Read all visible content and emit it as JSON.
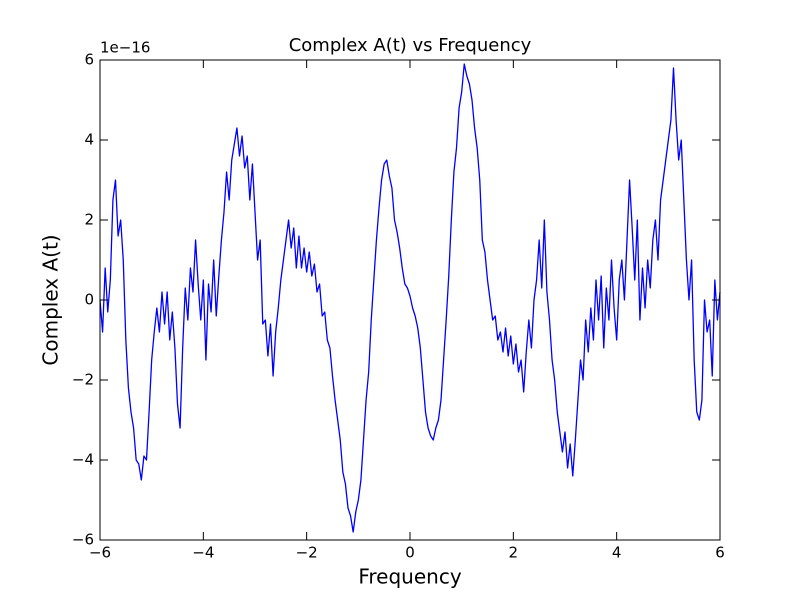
{
  "chart_data": {
    "type": "line",
    "title": "Complex A(t) vs Frequency",
    "x_label": "Frequency",
    "y_label": "Complex A(t)",
    "y_offset_label": "1e−16",
    "color": "#0000ff",
    "grid": false,
    "xlim": [
      -6,
      6
    ],
    "ylim": [
      -6,
      6
    ],
    "xticks": [
      {
        "value": -6,
        "label": "−6"
      },
      {
        "value": -4,
        "label": "−4"
      },
      {
        "value": -2,
        "label": "−2"
      },
      0,
      2,
      4,
      6
    ],
    "yticks": [
      {
        "value": -6,
        "label": "−6"
      },
      {
        "value": -4,
        "label": "−4"
      },
      {
        "value": -2,
        "label": "−2"
      },
      0,
      2,
      4,
      6
    ],
    "x": [
      -6.0,
      -5.95,
      -5.9,
      -5.85,
      -5.8,
      -5.75,
      -5.7,
      -5.65,
      -5.6,
      -5.55,
      -5.5,
      -5.45,
      -5.4,
      -5.35,
      -5.3,
      -5.25,
      -5.2,
      -5.15,
      -5.1,
      -5.05,
      -5.0,
      -4.95,
      -4.9,
      -4.85,
      -4.8,
      -4.75,
      -4.7,
      -4.65,
      -4.6,
      -4.55,
      -4.5,
      -4.45,
      -4.4,
      -4.35,
      -4.3,
      -4.25,
      -4.2,
      -4.15,
      -4.1,
      -4.05,
      -4.0,
      -3.95,
      -3.9,
      -3.85,
      -3.8,
      -3.75,
      -3.7,
      -3.65,
      -3.6,
      -3.55,
      -3.5,
      -3.45,
      -3.4,
      -3.35,
      -3.3,
      -3.25,
      -3.2,
      -3.15,
      -3.1,
      -3.05,
      -3.0,
      -2.95,
      -2.9,
      -2.85,
      -2.8,
      -2.75,
      -2.7,
      -2.65,
      -2.6,
      -2.55,
      -2.5,
      -2.45,
      -2.4,
      -2.35,
      -2.3,
      -2.25,
      -2.2,
      -2.15,
      -2.1,
      -2.05,
      -2.0,
      -1.95,
      -1.9,
      -1.85,
      -1.8,
      -1.75,
      -1.7,
      -1.65,
      -1.6,
      -1.55,
      -1.5,
      -1.45,
      -1.4,
      -1.35,
      -1.3,
      -1.25,
      -1.2,
      -1.15,
      -1.1,
      -1.05,
      -1.0,
      -0.95,
      -0.9,
      -0.85,
      -0.8,
      -0.75,
      -0.7,
      -0.65,
      -0.6,
      -0.55,
      -0.5,
      -0.45,
      -0.4,
      -0.35,
      -0.3,
      -0.25,
      -0.2,
      -0.15,
      -0.1,
      -0.05,
      0.0,
      0.05,
      0.1,
      0.15,
      0.2,
      0.25,
      0.3,
      0.35,
      0.4,
      0.45,
      0.5,
      0.55,
      0.6,
      0.65,
      0.7,
      0.75,
      0.8,
      0.85,
      0.9,
      0.95,
      1.0,
      1.05,
      1.1,
      1.15,
      1.2,
      1.25,
      1.3,
      1.35,
      1.4,
      1.45,
      1.5,
      1.55,
      1.6,
      1.65,
      1.7,
      1.75,
      1.8,
      1.85,
      1.9,
      1.95,
      2.0,
      2.05,
      2.1,
      2.15,
      2.2,
      2.25,
      2.3,
      2.35,
      2.4,
      2.45,
      2.5,
      2.55,
      2.6,
      2.65,
      2.7,
      2.75,
      2.8,
      2.85,
      2.9,
      2.95,
      3.0,
      3.05,
      3.1,
      3.15,
      3.2,
      3.25,
      3.3,
      3.35,
      3.4,
      3.45,
      3.5,
      3.55,
      3.6,
      3.65,
      3.7,
      3.75,
      3.8,
      3.85,
      3.9,
      3.95,
      4.0,
      4.05,
      4.1,
      4.15,
      4.2,
      4.25,
      4.3,
      4.35,
      4.4,
      4.45,
      4.5,
      4.55,
      4.6,
      4.65,
      4.7,
      4.75,
      4.8,
      4.85,
      4.9,
      4.95,
      5.0,
      5.05,
      5.1,
      5.15,
      5.2,
      5.25,
      5.3,
      5.35,
      5.4,
      5.45,
      5.5,
      5.55,
      5.6,
      5.65,
      5.7,
      5.75,
      5.8,
      5.85,
      5.9,
      5.95,
      6.0
    ],
    "values": [
      0,
      -0.8,
      0.8,
      -0.3,
      0.5,
      2.5,
      3.0,
      1.6,
      2.0,
      1.0,
      -1.0,
      -2.2,
      -2.8,
      -3.2,
      -4.0,
      -4.1,
      -4.5,
      -3.9,
      -4.0,
      -2.8,
      -1.5,
      -0.8,
      -0.2,
      -0.8,
      0.2,
      -0.6,
      0.2,
      -1.0,
      -0.3,
      -1.2,
      -2.6,
      -3.2,
      -1.2,
      0.3,
      -0.5,
      0.8,
      0.2,
      1.5,
      0.4,
      -0.5,
      0.5,
      -1.5,
      0.4,
      -0.3,
      1.0,
      -0.4,
      0.6,
      1.5,
      2.2,
      3.2,
      2.5,
      3.5,
      3.9,
      4.3,
      3.6,
      4.1,
      3.3,
      3.6,
      2.5,
      3.4,
      2.2,
      1.0,
      1.5,
      -0.6,
      -0.5,
      -1.4,
      -0.6,
      -1.9,
      -0.8,
      -0.2,
      0.5,
      1.0,
      1.5,
      2.0,
      1.3,
      1.8,
      0.8,
      1.6,
      0.8,
      1.3,
      0.7,
      1.2,
      0.6,
      0.9,
      0.2,
      0.4,
      -0.4,
      -0.3,
      -1.0,
      -1.2,
      -1.9,
      -2.5,
      -3.0,
      -3.5,
      -4.3,
      -4.6,
      -5.2,
      -5.4,
      -5.8,
      -5.3,
      -5.0,
      -4.5,
      -3.5,
      -2.5,
      -1.8,
      -0.5,
      0.5,
      1.5,
      2.3,
      3.0,
      3.4,
      3.5,
      3.1,
      2.8,
      2.0,
      1.7,
      1.3,
      0.8,
      0.4,
      0.3,
      0.1,
      -0.2,
      -0.4,
      -0.7,
      -1.2,
      -2.0,
      -2.8,
      -3.2,
      -3.4,
      -3.5,
      -3.2,
      -3.0,
      -2.5,
      -1.5,
      -0.5,
      0.6,
      2.0,
      3.2,
      3.8,
      4.8,
      5.2,
      5.9,
      5.6,
      5.4,
      5.0,
      4.3,
      3.8,
      3.0,
      1.5,
      1.2,
      0.5,
      0.0,
      -0.5,
      -0.4,
      -1.0,
      -0.8,
      -1.3,
      -0.7,
      -1.4,
      -0.9,
      -1.6,
      -1.1,
      -1.8,
      -1.5,
      -2.3,
      -1.3,
      -0.5,
      -1.2,
      0.0,
      0.5,
      1.5,
      0.3,
      2.0,
      0.2,
      -0.5,
      -1.5,
      -2.0,
      -2.8,
      -3.3,
      -3.8,
      -3.3,
      -4.2,
      -3.6,
      -4.4,
      -3.5,
      -2.5,
      -1.5,
      -2.0,
      -0.5,
      -1.3,
      -0.2,
      -1.0,
      0.5,
      -0.5,
      0.6,
      -1.2,
      0.3,
      -0.5,
      1.0,
      -0.2,
      -1.0,
      0.5,
      1.0,
      0.0,
      1.5,
      3.0,
      1.8,
      0.5,
      2.0,
      -0.5,
      0.8,
      -0.2,
      1.0,
      0.3,
      1.5,
      2.0,
      1.0,
      2.5,
      3.0,
      3.5,
      4.0,
      4.5,
      5.8,
      4.5,
      3.5,
      4.0,
      2.5,
      1.0,
      0.0,
      1.0,
      -1.5,
      -2.8,
      -3.0,
      -2.5,
      0.0,
      -0.8,
      -0.5,
      -1.9,
      0.5,
      -0.5,
      0.2
    ]
  }
}
